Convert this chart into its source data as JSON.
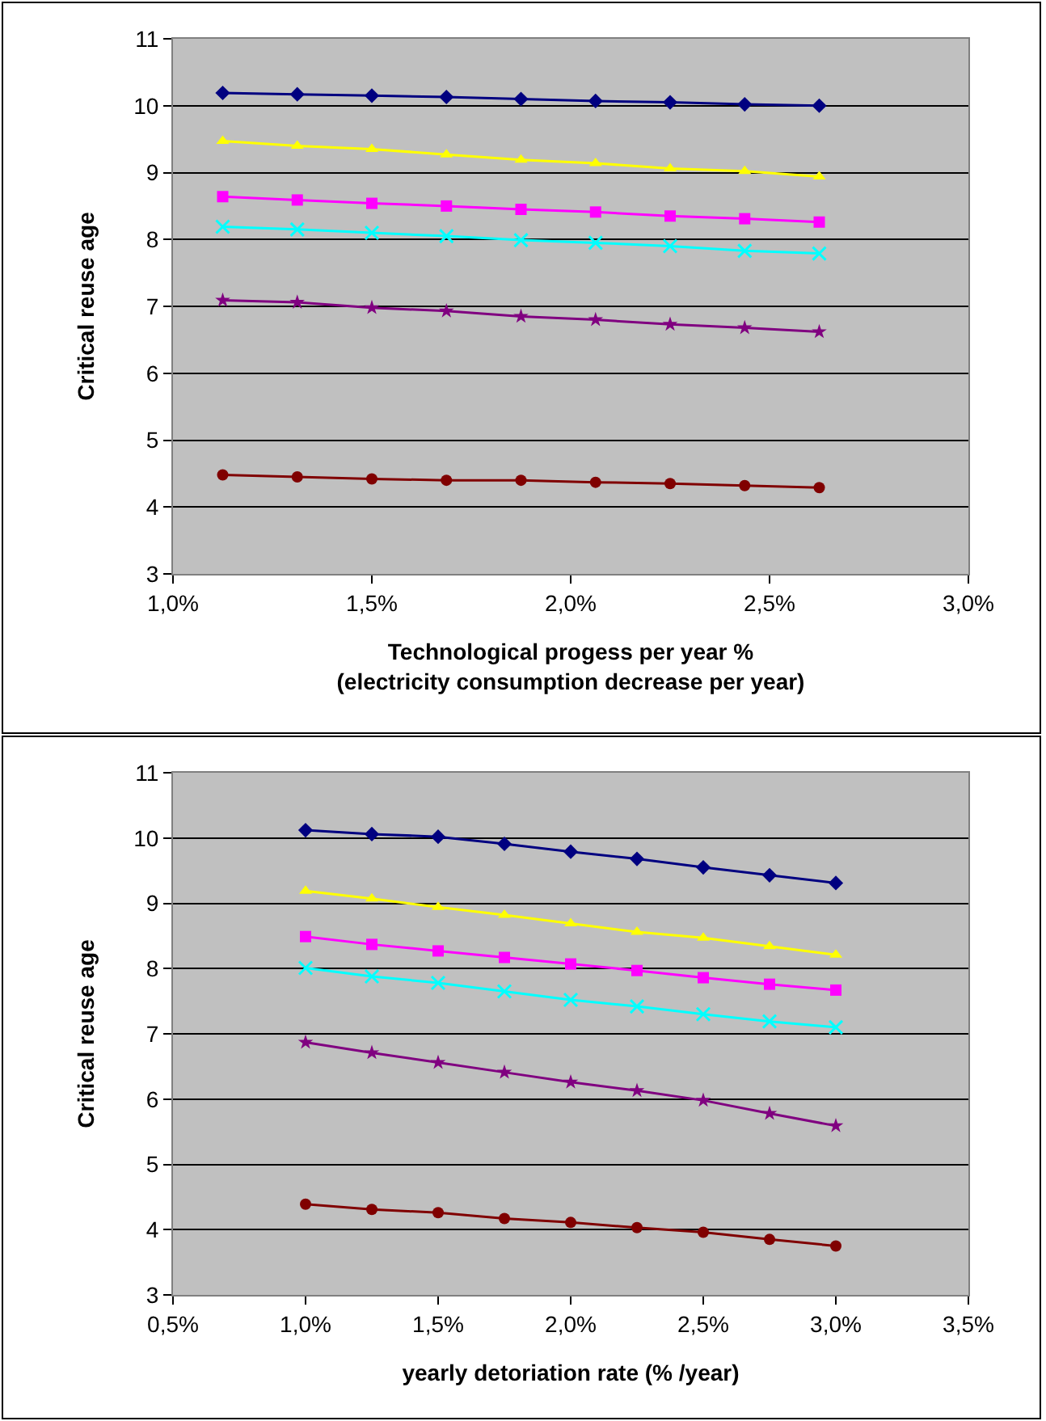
{
  "chart_data": [
    {
      "type": "line",
      "xlabel": "Technological progess per year %\n(electricity consumption decrease per year)",
      "ylabel": "Critical reuse age",
      "x": [
        1.125,
        1.3125,
        1.5,
        1.6875,
        1.875,
        2.0625,
        2.25,
        2.4375,
        2.625
      ],
      "xlim": [
        1,
        3
      ],
      "xticks": [
        {
          "value": 1,
          "label": "1,0%"
        },
        {
          "value": 1.5,
          "label": "1,5%"
        },
        {
          "value": 2,
          "label": "2,0%"
        },
        {
          "value": 2.5,
          "label": "2,5%"
        },
        {
          "value": 3,
          "label": "3,0%"
        }
      ],
      "ylim": [
        3,
        11
      ],
      "yticks": [
        3,
        4,
        5,
        6,
        7,
        8,
        9,
        10,
        11
      ],
      "grid": "y",
      "series": [
        {
          "color": "#000080",
          "marker": "diamond",
          "values": [
            10.19,
            10.17,
            10.15,
            10.13,
            10.1,
            10.07,
            10.05,
            10.02,
            10.0
          ]
        },
        {
          "color": "#ffff00",
          "marker": "triangle",
          "values": [
            9.47,
            9.4,
            9.35,
            9.27,
            9.19,
            9.14,
            9.06,
            9.02,
            8.94
          ]
        },
        {
          "color": "#ff00ff",
          "marker": "square",
          "values": [
            8.64,
            8.59,
            8.54,
            8.5,
            8.45,
            8.41,
            8.35,
            8.31,
            8.26
          ]
        },
        {
          "color": "#00ffff",
          "marker": "cross",
          "values": [
            8.19,
            8.15,
            8.1,
            8.05,
            7.99,
            7.95,
            7.9,
            7.83,
            7.79
          ]
        },
        {
          "color": "#800080",
          "marker": "star",
          "values": [
            7.09,
            7.06,
            6.98,
            6.93,
            6.85,
            6.8,
            6.73,
            6.68,
            6.62
          ]
        },
        {
          "color": "#800000",
          "marker": "circle",
          "values": [
            4.48,
            4.45,
            4.42,
            4.4,
            4.4,
            4.37,
            4.35,
            4.32,
            4.29
          ]
        }
      ]
    },
    {
      "type": "line",
      "xlabel": "yearly detoriation rate (% /year)",
      "ylabel": "Critical reuse age",
      "x": [
        1,
        1.25,
        1.5,
        1.75,
        2,
        2.25,
        2.5,
        2.75,
        3
      ],
      "xlim": [
        0.5,
        3.5
      ],
      "xticks": [
        {
          "value": 0.5,
          "label": "0,5%"
        },
        {
          "value": 1,
          "label": "1,0%"
        },
        {
          "value": 1.5,
          "label": "1,5%"
        },
        {
          "value": 2,
          "label": "2,0%"
        },
        {
          "value": 2.5,
          "label": "2,5%"
        },
        {
          "value": 3,
          "label": "3,0%"
        },
        {
          "value": 3.5,
          "label": "3,5%"
        }
      ],
      "ylim": [
        3,
        11
      ],
      "yticks": [
        3,
        4,
        5,
        6,
        7,
        8,
        9,
        10,
        11
      ],
      "grid": "y",
      "series": [
        {
          "color": "#000080",
          "marker": "diamond",
          "values": [
            10.12,
            10.06,
            10.02,
            9.91,
            9.79,
            9.68,
            9.55,
            9.43,
            9.31
          ]
        },
        {
          "color": "#ffff00",
          "marker": "triangle",
          "values": [
            9.19,
            9.07,
            8.94,
            8.82,
            8.69,
            8.56,
            8.47,
            8.34,
            8.21
          ]
        },
        {
          "color": "#ff00ff",
          "marker": "square",
          "values": [
            8.49,
            8.37,
            8.27,
            8.17,
            8.07,
            7.97,
            7.86,
            7.76,
            7.67
          ]
        },
        {
          "color": "#00ffff",
          "marker": "cross",
          "values": [
            8.01,
            7.88,
            7.78,
            7.65,
            7.52,
            7.42,
            7.3,
            7.19,
            7.1
          ]
        },
        {
          "color": "#800080",
          "marker": "star",
          "values": [
            6.87,
            6.71,
            6.56,
            6.41,
            6.26,
            6.13,
            5.98,
            5.78,
            5.59
          ]
        },
        {
          "color": "#800000",
          "marker": "circle",
          "values": [
            4.39,
            4.31,
            4.26,
            4.17,
            4.11,
            4.03,
            3.96,
            3.85,
            3.75
          ]
        }
      ]
    }
  ]
}
